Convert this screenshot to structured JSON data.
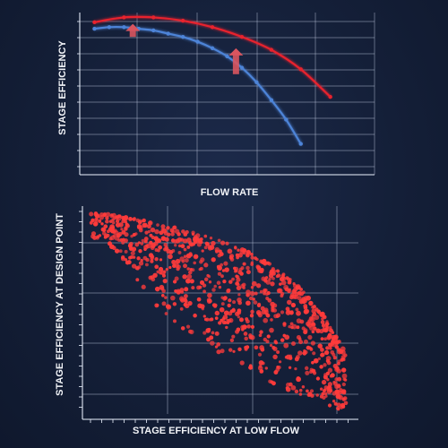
{
  "chart_data": [
    {
      "type": "line",
      "title": "",
      "xlabel": "FLOW RATE",
      "ylabel": "STAGE EFFICIENCY",
      "xlim": [
        0,
        10
      ],
      "ylim": [
        0,
        1
      ],
      "grid": true,
      "annotations": [
        {
          "name": "improvement-arrow",
          "x": 1.8,
          "y_from": 0.85,
          "y_to": 0.93,
          "color": "#d9555f"
        },
        {
          "name": "improvement-arrow",
          "x": 5.3,
          "y_from": 0.62,
          "y_to": 0.78,
          "color": "#d9555f"
        }
      ],
      "series": [
        {
          "color": "#e8232d",
          "x": [
            0.5,
            1.5,
            2.5,
            3.5,
            4.5,
            5.5,
            6.5,
            7.5,
            8.5
          ],
          "y": [
            0.94,
            0.97,
            0.97,
            0.95,
            0.91,
            0.85,
            0.77,
            0.65,
            0.48
          ]
        },
        {
          "color": "#4d84d8",
          "x": [
            0.5,
            1.0,
            1.5,
            2.0,
            2.5,
            3.0,
            3.5,
            4.0,
            4.5,
            5.0,
            5.5,
            6.0,
            6.5,
            7.0,
            7.5
          ],
          "y": [
            0.9,
            0.91,
            0.91,
            0.9,
            0.89,
            0.87,
            0.85,
            0.82,
            0.78,
            0.73,
            0.66,
            0.57,
            0.46,
            0.34,
            0.19
          ]
        }
      ]
    },
    {
      "type": "scatter",
      "title": "",
      "xlabel": "STAGE EFFICIENCY AT LOW FLOW",
      "ylabel": "STAGE EFFICIENCY AT DESIGN POINT",
      "xlim": [
        0,
        1
      ],
      "ylim": [
        0,
        1
      ],
      "grid": true,
      "point_count": 900,
      "color": "#ff3b3b",
      "envelope": {
        "upper_x": [
          0.0,
          0.1,
          0.2,
          0.3,
          0.4,
          0.5,
          0.6,
          0.7,
          0.8,
          0.9,
          1.0
        ],
        "upper_y": [
          0.97,
          0.96,
          0.94,
          0.91,
          0.88,
          0.84,
          0.79,
          0.72,
          0.62,
          0.47,
          0.25
        ],
        "lower_y": [
          0.86,
          0.82,
          0.65,
          0.48,
          0.38,
          0.3,
          0.22,
          0.15,
          0.08,
          0.03,
          0.0
        ]
      }
    }
  ]
}
